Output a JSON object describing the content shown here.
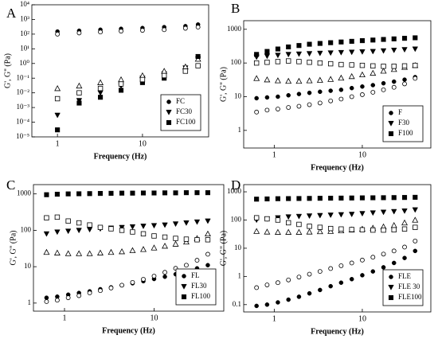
{
  "chart_data": [
    {
      "type": "scatter",
      "label": "A",
      "x_label": "Frequency (Hz)",
      "y_label": "G', G'' (Pa)",
      "log_x": true,
      "log_y": true,
      "legend": "lower right",
      "x": [
        1,
        1.8,
        3.2,
        5.6,
        10,
        18,
        32,
        45
      ],
      "xlim": [
        0.5,
        60
      ],
      "xticks": [
        1,
        10
      ],
      "ylim": [
        1e-05,
        10000
      ],
      "yticks": [
        {
          "value": 1e-05,
          "label": "10⁻⁵"
        },
        {
          "value": 0.0001,
          "label": "10⁻⁴"
        },
        {
          "value": 0.001,
          "label": "10⁻³"
        },
        {
          "value": 0.01,
          "label": "10⁻²"
        },
        {
          "value": 0.1,
          "label": "10⁻¹"
        },
        {
          "value": 1,
          "label": "10⁰"
        },
        {
          "value": 10,
          "label": "10¹"
        },
        {
          "value": 100,
          "label": "10²"
        },
        {
          "value": 1000,
          "label": "10³"
        },
        {
          "value": 10000,
          "label": "10⁴"
        }
      ],
      "series": [
        {
          "name": "FC",
          "marker": "circle",
          "open_marker": "circle",
          "color": "#000000",
          "values": [
            150,
            170,
            200,
            230,
            260,
            300,
            350,
            450
          ],
          "open_values": [
            100,
            120,
            140,
            160,
            180,
            200,
            250,
            300
          ]
        },
        {
          "name": "FC30",
          "marker": "triangle-down",
          "open_marker": "triangle-up",
          "color": "#000000",
          "values": [
            0.0003,
            0.003,
            0.01,
            0.03,
            0.1,
            0.2,
            0.5,
            2
          ],
          "open_values": [
            0.02,
            0.03,
            0.05,
            0.08,
            0.15,
            0.3,
            0.6,
            2
          ]
        },
        {
          "name": "FC100",
          "marker": "square",
          "open_marker": "square",
          "color": "#000000",
          "values": [
            3e-05,
            0.002,
            0.005,
            0.015,
            0.05,
            0.1,
            0.3,
            3
          ],
          "open_values": [
            0.004,
            0.01,
            0.02,
            0.04,
            0.08,
            0.15,
            0.3,
            0.7
          ]
        }
      ]
    },
    {
      "type": "scatter",
      "label": "B",
      "x_label": "Frequency (Hz)",
      "y_label": "G', G'' (Pa)",
      "log_x": true,
      "log_y": true,
      "legend": "lower right",
      "x": [
        0.63,
        0.83,
        1.1,
        1.45,
        1.91,
        2.51,
        3.31,
        4.37,
        5.75,
        7.59,
        10,
        13.2,
        17.4,
        22.9,
        30.2,
        39.8
      ],
      "xlim": [
        0.45,
        60
      ],
      "xticks": [
        1,
        10
      ],
      "ylim": [
        0.3,
        1800
      ],
      "yticks": [
        1,
        10,
        100,
        1000
      ],
      "series": [
        {
          "name": "F",
          "marker": "circle",
          "open_marker": "circle",
          "color": "#000000",
          "values": [
            9,
            9.5,
            10,
            11,
            12,
            13,
            14,
            15,
            16,
            18,
            20,
            22,
            25,
            28,
            32,
            38
          ],
          "open_values": [
            3.5,
            4,
            4.3,
            4.8,
            5.2,
            5.8,
            6.5,
            7.5,
            8.5,
            10,
            11.5,
            13.5,
            16,
            19,
            24,
            35
          ]
        },
        {
          "name": "F30",
          "marker": "triangle-down",
          "open_marker": "triangle-up",
          "color": "#000000",
          "values": [
            150,
            160,
            170,
            180,
            185,
            190,
            195,
            200,
            205,
            210,
            215,
            220,
            230,
            240,
            250,
            260
          ],
          "open_values": [
            35,
            32,
            30,
            29,
            29,
            30,
            31,
            33,
            36,
            40,
            45,
            50,
            58,
            65,
            75,
            85
          ]
        },
        {
          "name": "F100",
          "marker": "square",
          "open_marker": "square",
          "color": "#000000",
          "values": [
            180,
            220,
            260,
            300,
            330,
            360,
            380,
            400,
            420,
            440,
            460,
            480,
            500,
            520,
            540,
            560
          ],
          "open_values": [
            100,
            105,
            110,
            115,
            110,
            105,
            100,
            95,
            90,
            88,
            85,
            82,
            80,
            80,
            82,
            85
          ]
        }
      ]
    },
    {
      "type": "scatter",
      "label": "C",
      "x_label": "Frequency (Hz)",
      "y_label": "G', G'' (Pa)",
      "log_x": true,
      "log_y": true,
      "legend": "lower right",
      "x": [
        0.63,
        0.83,
        1.1,
        1.45,
        1.91,
        2.51,
        3.31,
        4.37,
        5.75,
        7.59,
        10,
        13.2,
        17.4,
        22.9,
        30.2,
        39.8
      ],
      "xlim": [
        0.45,
        60
      ],
      "xticks": [
        1,
        10
      ],
      "ylim": [
        0.6,
        1800
      ],
      "yticks": [
        1,
        10,
        100,
        1000
      ],
      "series": [
        {
          "name": "FL",
          "marker": "circle",
          "open_marker": "circle",
          "color": "#000000",
          "values": [
            1.4,
            1.5,
            1.7,
            1.9,
            2.1,
            2.4,
            2.7,
            3.1,
            3.5,
            4,
            4.6,
            5.3,
            6.2,
            7.5,
            9,
            11
          ],
          "open_values": [
            1.1,
            1.2,
            1.4,
            1.6,
            1.9,
            2.2,
            2.6,
            3.1,
            3.7,
            4.5,
            5.5,
            7,
            9,
            11,
            15,
            22
          ]
        },
        {
          "name": "FL30",
          "marker": "triangle-down",
          "open_marker": "triangle-up",
          "color": "#000000",
          "values": [
            80,
            90,
            95,
            100,
            105,
            110,
            115,
            120,
            125,
            130,
            135,
            140,
            150,
            160,
            170,
            180
          ],
          "open_values": [
            25,
            24,
            23,
            23,
            23,
            24,
            25,
            26,
            28,
            30,
            33,
            37,
            42,
            48,
            60,
            80
          ]
        },
        {
          "name": "FL100",
          "marker": "square",
          "open_marker": "square",
          "color": "#000000",
          "values": [
            950,
            980,
            1000,
            1010,
            1020,
            1030,
            1040,
            1050,
            1050,
            1060,
            1060,
            1070,
            1070,
            1080,
            1080,
            1080
          ],
          "open_values": [
            220,
            230,
            180,
            160,
            140,
            120,
            110,
            100,
            90,
            80,
            70,
            65,
            60,
            57,
            55,
            55
          ]
        }
      ]
    },
    {
      "type": "scatter",
      "label": "D",
      "x_label": "Frequency (Hz)",
      "y_label": "G', G\" (Pa)",
      "log_x": true,
      "log_y": true,
      "legend": "lower right",
      "x": [
        0.63,
        0.83,
        1.1,
        1.45,
        1.91,
        2.51,
        3.31,
        4.37,
        5.75,
        7.59,
        10,
        13.2,
        17.4,
        22.9,
        30.2,
        39.8
      ],
      "xlim": [
        0.45,
        60
      ],
      "xticks": [
        1,
        10
      ],
      "ylim": [
        0.055,
        1800
      ],
      "yticks": [
        0.1,
        1,
        10,
        100,
        1000
      ],
      "series": [
        {
          "name": "FLE",
          "marker": "circle",
          "open_marker": "circle",
          "color": "#000000",
          "values": [
            0.09,
            0.1,
            0.12,
            0.15,
            0.19,
            0.25,
            0.33,
            0.45,
            0.6,
            0.8,
            1.1,
            1.5,
            2.1,
            3,
            4.5,
            8
          ],
          "open_values": [
            0.4,
            0.5,
            0.6,
            0.75,
            0.95,
            1.2,
            1.5,
            1.9,
            2.4,
            3,
            3.8,
            4.8,
            6.2,
            8,
            11,
            18
          ]
        },
        {
          "name": "FLE 30",
          "marker": "triangle-down",
          "open_marker": "triangle-up",
          "color": "#000000",
          "values": [
            100,
            110,
            120,
            130,
            135,
            140,
            145,
            150,
            155,
            160,
            170,
            180,
            190,
            200,
            210,
            230
          ],
          "open_values": [
            40,
            38,
            37,
            37,
            37,
            38,
            39,
            40,
            42,
            45,
            48,
            52,
            58,
            65,
            80,
            100
          ]
        },
        {
          "name": "FLE100",
          "marker": "square",
          "open_marker": "square",
          "color": "#000000",
          "values": [
            550,
            560,
            570,
            575,
            580,
            585,
            590,
            595,
            600,
            605,
            610,
            615,
            620,
            625,
            630,
            640
          ],
          "open_values": [
            120,
            110,
            100,
            80,
            70,
            60,
            55,
            50,
            48,
            46,
            45,
            44,
            44,
            45,
            48,
            55
          ]
        }
      ]
    }
  ]
}
